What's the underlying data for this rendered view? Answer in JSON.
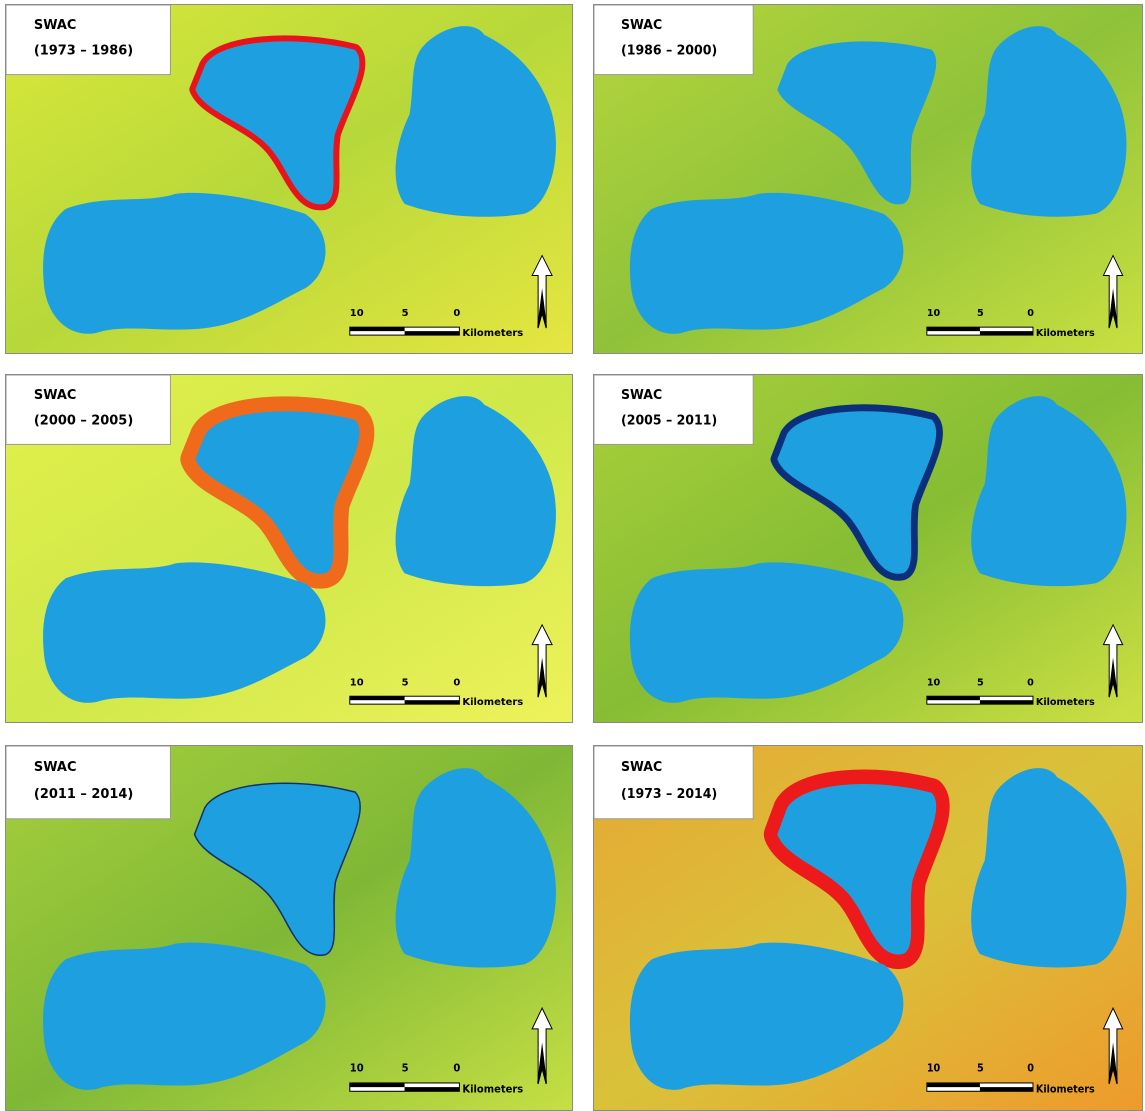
{
  "label": "SWAC",
  "panels": [
    {
      "period": "(1973 – 1986)"
    },
    {
      "period": "(1986 – 2000)"
    },
    {
      "period": "(2000 – 2005)"
    },
    {
      "period": "(2005 – 2011)"
    },
    {
      "period": "(2011 – 2014)"
    },
    {
      "period": "(1973 – 2014)"
    }
  ],
  "scale_bar": {
    "labels": [
      "10",
      "5",
      "0"
    ],
    "unit": "Kilometers"
  }
}
